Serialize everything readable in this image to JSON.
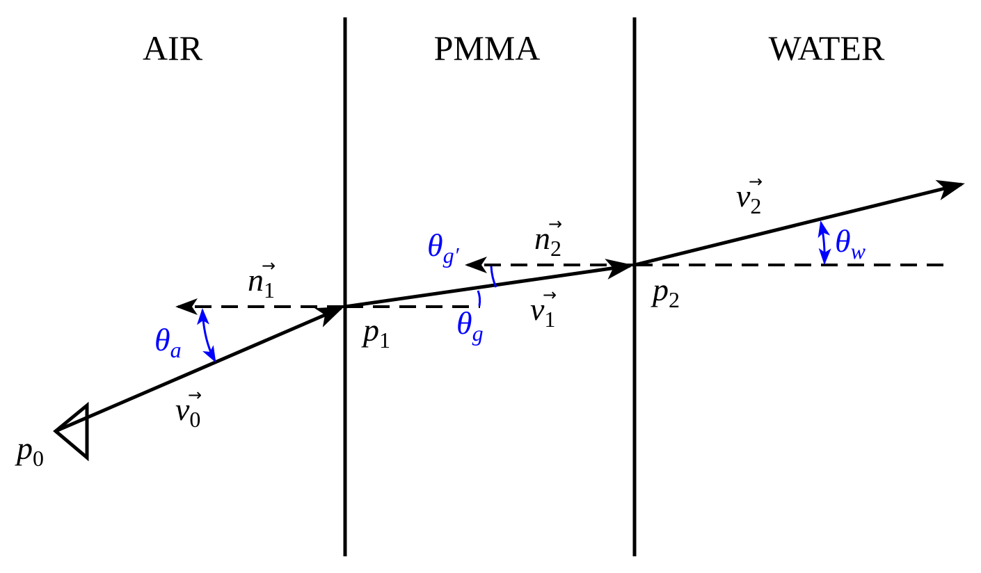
{
  "regions": [
    "AIR",
    "PMMA",
    "WATER"
  ],
  "colors": {
    "lines": "#000000",
    "angles": "#0000ff"
  },
  "points": {
    "p0": {
      "base": "p",
      "sub": "0"
    },
    "p1": {
      "base": "p",
      "sub": "1"
    },
    "p2": {
      "base": "p",
      "sub": "2"
    }
  },
  "vectors": {
    "v0": {
      "base": "v",
      "sub": "0",
      "arrow": "→"
    },
    "v1": {
      "base": "v",
      "sub": "1",
      "arrow": "→"
    },
    "v2": {
      "base": "v",
      "sub": "2",
      "arrow": "→"
    },
    "n1": {
      "base": "n",
      "sub": "1",
      "arrow": "→"
    },
    "n2": {
      "base": "n",
      "sub": "2",
      "arrow": "→"
    }
  },
  "angles": {
    "theta_a": {
      "base": "θ",
      "sub": "a"
    },
    "theta_g": {
      "base": "θ",
      "sub": "g"
    },
    "theta_g_prime": {
      "base": "θ",
      "sub": "g′"
    },
    "theta_w": {
      "base": "θ",
      "sub": "w"
    }
  },
  "icons": {
    "camera": "triangle-camera-icon"
  }
}
